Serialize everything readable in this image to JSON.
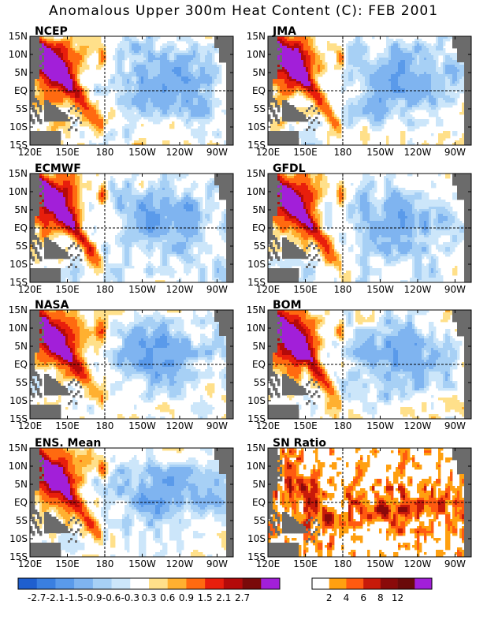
{
  "chart_data": {
    "type": "heatmap",
    "title": "Anomalous Upper 300m Heat Content (C): FEB 2001",
    "region": {
      "lon_ticks": [
        "120E",
        "150E",
        "180",
        "150W",
        "120W",
        "90W"
      ],
      "lat_ticks": [
        "15N",
        "10N",
        "5N",
        "EQ",
        "5S",
        "10S",
        "15S"
      ]
    },
    "panels": [
      {
        "label": "NCEP",
        "variant": "ncep"
      },
      {
        "label": "JMA",
        "variant": "jma"
      },
      {
        "label": "ECMWF",
        "variant": "ecmwf"
      },
      {
        "label": "GFDL",
        "variant": "gfdl"
      },
      {
        "label": "NASA",
        "variant": "nasa"
      },
      {
        "label": "BOM",
        "variant": "bom"
      },
      {
        "label": "ENS. Mean",
        "variant": "ens"
      },
      {
        "label": "SN Ratio",
        "variant": "sn"
      }
    ],
    "anomaly_colorbar": {
      "levels": [
        "-2.7",
        "-2.1",
        "-1.5",
        "-0.9",
        "-0.6",
        "-0.3",
        "0.3",
        "0.6",
        "0.9",
        "1.5",
        "2.1",
        "2.7"
      ],
      "colors": [
        "#1f5fcf",
        "#3a7fe0",
        "#5a9aea",
        "#7fb4f0",
        "#a7d0f5",
        "#cce6fa",
        "#ffffff",
        "#ffe08a",
        "#ffb030",
        "#ff6a10",
        "#e81e0c",
        "#b40a0a",
        "#7a0a0a",
        "#a21fd9"
      ]
    },
    "snr_colorbar": {
      "levels": [
        "2",
        "4",
        "6",
        "8",
        "12"
      ],
      "colors": [
        "#ffffff",
        "#ffa010",
        "#ff5a10",
        "#c81a0a",
        "#8a0a0a",
        "#6a0a0a",
        "#a21fd9"
      ]
    },
    "land_color": "#6b6b6b"
  }
}
